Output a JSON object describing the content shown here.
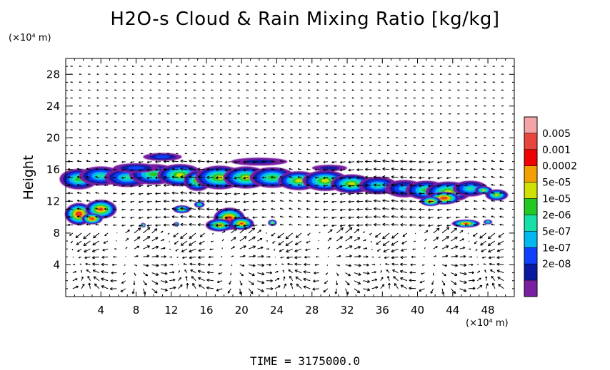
{
  "title": "H2O-s Cloud & Rain Mixing Ratio [kg/kg]",
  "time_label": "TIME = 3175000.0",
  "colors": {
    "frame": "#000000",
    "arrows": "#000000"
  },
  "chart_data": {
    "type": "heatmap",
    "title": "H2O-s Cloud & Rain Mixing Ratio [kg/kg]",
    "xlabel": "",
    "ylabel": "Height",
    "x_unit": "(×10⁴ m)",
    "y_unit": "(×10⁴ m)",
    "xlim": [
      0,
      51
    ],
    "ylim": [
      0,
      30
    ],
    "x_ticks": [
      4,
      8,
      12,
      16,
      20,
      24,
      28,
      32,
      36,
      40,
      44,
      48
    ],
    "y_ticks": [
      4,
      8,
      12,
      16,
      20,
      24,
      28
    ],
    "grid": false,
    "legend": {
      "placement": "right",
      "levels": [
        "0.005",
        "0.001",
        "0.0002",
        "5e-05",
        "1e-05",
        "2e-06",
        "5e-07",
        "1e-07",
        "2e-08"
      ],
      "colors": [
        "#f4a3a8",
        "#e8453c",
        "#f00000",
        "#f2a000",
        "#d0e000",
        "#22c922",
        "#14e0a8",
        "#00b8f0",
        "#1040ff",
        "#0a1aa0",
        "#7b1fa2"
      ]
    },
    "overlay": "wind vectors"
  }
}
